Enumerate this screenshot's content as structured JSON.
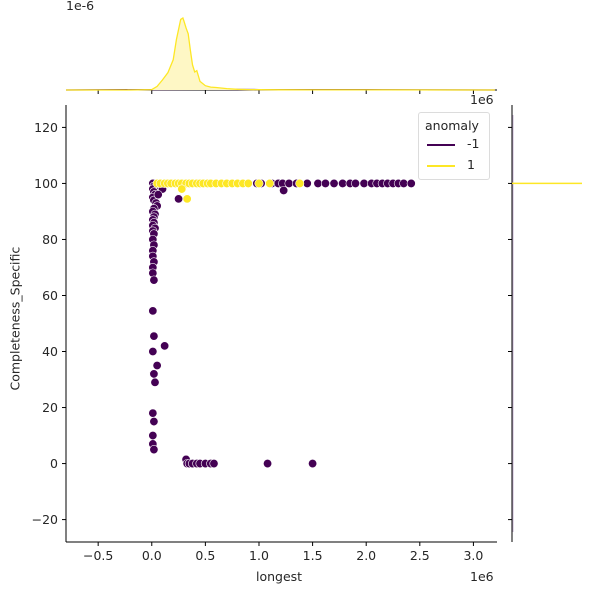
{
  "chart_data": {
    "type": "scatter",
    "kind": "jointplot",
    "title": "",
    "xlabel": "longest",
    "ylabel": "Completeness_Specific",
    "x_offset_text": "1e6",
    "top_marginal_offset_text": "1e-6",
    "right_marginal_offset_text": "1e6",
    "xlim": [
      -0.8,
      3.22
    ],
    "ylim": [
      -28,
      128
    ],
    "x_ticks": [
      -0.5,
      0.0,
      0.5,
      1.0,
      1.5,
      2.0,
      2.5,
      3.0
    ],
    "x_tick_labels": [
      "−0.5",
      "0.0",
      "0.5",
      "1.0",
      "1.5",
      "2.0",
      "2.5",
      "3.0"
    ],
    "y_ticks": [
      -20,
      0,
      20,
      40,
      60,
      80,
      100,
      120
    ],
    "y_tick_labels": [
      "−20",
      "0",
      "20",
      "40",
      "60",
      "80",
      "100",
      "120"
    ],
    "grid": false,
    "legend": {
      "title": "anomaly",
      "position": "upper right",
      "entries": [
        "-1",
        "1"
      ]
    },
    "series": [
      {
        "name": "-1",
        "color": "#440154",
        "points_x_1e6": [
          0.01,
          0.02,
          0.01,
          0.02,
          0.03,
          0.01,
          0.02,
          0.04,
          0.05,
          0.02,
          0.01,
          0.03,
          0.08,
          0.1,
          0.06,
          0.02,
          0.01,
          0.02,
          0.01,
          0.03,
          0.01,
          0.02,
          0.01,
          0.02,
          0.01,
          0.01,
          0.02,
          0.01,
          0.01,
          0.02,
          0.12,
          0.05,
          0.02,
          0.01,
          0.01,
          0.02,
          0.03,
          0.01,
          0.02,
          0.01,
          0.01,
          0.02,
          0.32,
          0.33,
          0.35,
          0.38,
          0.42,
          0.45,
          0.5,
          0.55,
          0.58,
          1.08,
          1.5,
          0.25,
          0.98,
          1.02,
          1.12,
          1.18,
          1.22,
          1.28,
          1.35,
          1.45,
          1.55,
          1.62,
          1.7,
          1.78,
          1.85,
          1.9,
          1.98,
          2.05,
          2.1,
          2.15,
          2.2,
          2.25,
          2.3,
          2.35,
          2.42,
          1.23
        ],
        "points_y": [
          100,
          99,
          98,
          97,
          96,
          95,
          94,
          93,
          92,
          91,
          90,
          89,
          99,
          98,
          96,
          88,
          87,
          86,
          85,
          84,
          83,
          82,
          80,
          78,
          76,
          74,
          72,
          70,
          68,
          65.5,
          42,
          35,
          45.5,
          54.5,
          40,
          32,
          29,
          18,
          15,
          10,
          7,
          5,
          1.5,
          0,
          0,
          0,
          0,
          0,
          0,
          0,
          0,
          0,
          0,
          94.5,
          100,
          100,
          100,
          100,
          100,
          100,
          100,
          100,
          100,
          100,
          100,
          100,
          100,
          100,
          100,
          100,
          100,
          100,
          100,
          100,
          100,
          100,
          100,
          97.5
        ]
      },
      {
        "name": "1",
        "color": "#fde725",
        "points_x_1e6": [
          0.05,
          0.08,
          0.12,
          0.15,
          0.18,
          0.22,
          0.25,
          0.28,
          0.32,
          0.35,
          0.38,
          0.42,
          0.45,
          0.48,
          0.52,
          0.55,
          0.6,
          0.65,
          0.7,
          0.75,
          0.8,
          0.85,
          0.9,
          1.0,
          1.1,
          1.38,
          0.28,
          0.33
        ],
        "points_y": [
          100,
          100,
          100,
          100,
          100,
          100,
          100,
          100,
          100,
          100,
          100,
          100,
          100,
          100,
          100,
          100,
          100,
          100,
          100,
          100,
          100,
          100,
          100,
          100,
          100,
          100,
          98,
          94.5
        ]
      }
    ],
    "top_marginal_kde": {
      "series": [
        {
          "name": "1",
          "color": "#fde725",
          "fill": "#fef7c5",
          "x_1e6": [
            -0.8,
            -0.2,
            0.0,
            0.05,
            0.1,
            0.15,
            0.2,
            0.23,
            0.27,
            0.29,
            0.3,
            0.32,
            0.34,
            0.36,
            0.38,
            0.4,
            0.42,
            0.45,
            0.5,
            0.55,
            0.6,
            0.7,
            0.8,
            0.9,
            1.0,
            1.2,
            1.5,
            2.0,
            3.2
          ],
          "density_rel": [
            0,
            0,
            0.005,
            0.05,
            0.14,
            0.24,
            0.42,
            0.7,
            0.98,
            1.0,
            0.96,
            0.86,
            0.78,
            0.55,
            0.35,
            0.25,
            0.27,
            0.12,
            0.06,
            0.04,
            0.035,
            0.02,
            0.01,
            0.005,
            0.004,
            0.003,
            0.002,
            0.001,
            0
          ]
        },
        {
          "name": "-1",
          "color": "#440154",
          "x_1e6": [
            -0.8,
            0.0,
            0.5,
            1.0,
            1.5,
            2.0,
            2.5,
            3.2
          ],
          "density_rel": [
            0,
            0.006,
            0.008,
            0.006,
            0.005,
            0.004,
            0.002,
            0
          ]
        }
      ]
    },
    "right_marginal": {
      "series": [
        {
          "name": "1",
          "color": "#fde725",
          "y": 100,
          "note": "degenerate spike at 100"
        },
        {
          "name": "-1",
          "color": "#440154",
          "note": "near-flat along axis"
        }
      ]
    }
  }
}
